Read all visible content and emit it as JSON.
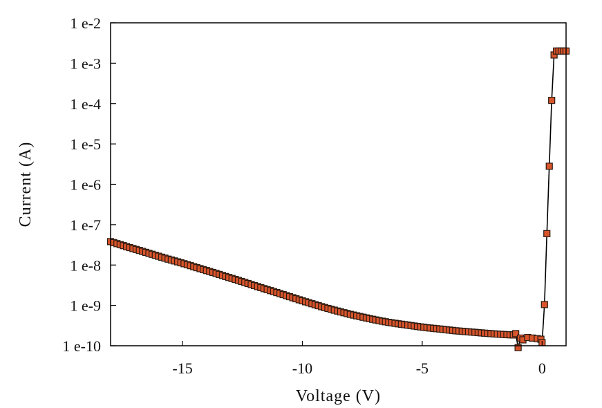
{
  "chart_data": {
    "type": "scatter",
    "title": "",
    "xlabel": "Voltage (V)",
    "ylabel": "Current (A)",
    "xlim": [
      -18,
      1
    ],
    "ylim": [
      1e-10,
      0.01
    ],
    "y_scale": "log",
    "x_ticks": [
      {
        "value": -15,
        "label": "-15"
      },
      {
        "value": -10,
        "label": "-10"
      },
      {
        "value": -5,
        "label": "-5"
      },
      {
        "value": 0,
        "label": "0"
      }
    ],
    "y_ticks": [
      {
        "value": 1e-10,
        "label": "1 e-10"
      },
      {
        "value": 1e-09,
        "label": "1 e-9"
      },
      {
        "value": 1e-08,
        "label": "1 e-8"
      },
      {
        "value": 1e-07,
        "label": "1 e-7"
      },
      {
        "value": 1e-06,
        "label": "1 e-6"
      },
      {
        "value": 1e-05,
        "label": "1 e-5"
      },
      {
        "value": 0.0001,
        "label": "1 e-4"
      },
      {
        "value": 0.001,
        "label": "1 e-3"
      },
      {
        "value": 0.01,
        "label": "1 e-2"
      }
    ],
    "grid": false,
    "legend": "none",
    "marker_fill": "#d9552c",
    "marker_edge": "#2a1a10",
    "line_color": "#000000",
    "series": [
      {
        "points": [
          {
            "x": -18.0,
            "y": 3.8e-08
          },
          {
            "x": -17.6,
            "y": 3.2e-08
          },
          {
            "x": -17.2,
            "y": 2.7e-08
          },
          {
            "x": -16.8,
            "y": 2.3e-08
          },
          {
            "x": -16.4,
            "y": 1.95e-08
          },
          {
            "x": -16.0,
            "y": 1.65e-08
          },
          {
            "x": -15.6,
            "y": 1.4e-08
          },
          {
            "x": -15.2,
            "y": 1.2e-08
          },
          {
            "x": -14.8,
            "y": 1.02e-08
          },
          {
            "x": -14.4,
            "y": 8.6e-09
          },
          {
            "x": -14.0,
            "y": 7.3e-09
          },
          {
            "x": -13.6,
            "y": 6.2e-09
          },
          {
            "x": -13.2,
            "y": 5.2e-09
          },
          {
            "x": -12.8,
            "y": 4.4e-09
          },
          {
            "x": -12.4,
            "y": 3.7e-09
          },
          {
            "x": -12.0,
            "y": 3.1e-09
          },
          {
            "x": -11.6,
            "y": 2.6e-09
          },
          {
            "x": -11.2,
            "y": 2.2e-09
          },
          {
            "x": -10.8,
            "y": 1.85e-09
          },
          {
            "x": -10.4,
            "y": 1.55e-09
          },
          {
            "x": -10.0,
            "y": 1.3e-09
          },
          {
            "x": -9.6,
            "y": 1.1e-09
          },
          {
            "x": -9.2,
            "y": 9.3e-10
          },
          {
            "x": -8.8,
            "y": 8e-10
          },
          {
            "x": -8.4,
            "y": 6.9e-10
          },
          {
            "x": -8.0,
            "y": 6e-10
          },
          {
            "x": -7.6,
            "y": 5.3e-10
          },
          {
            "x": -7.2,
            "y": 4.7e-10
          },
          {
            "x": -6.8,
            "y": 4.2e-10
          },
          {
            "x": -6.4,
            "y": 3.8e-10
          },
          {
            "x": -6.0,
            "y": 3.5e-10
          },
          {
            "x": -5.6,
            "y": 3.25e-10
          },
          {
            "x": -5.2,
            "y": 3e-10
          },
          {
            "x": -4.8,
            "y": 2.8e-10
          },
          {
            "x": -4.4,
            "y": 2.65e-10
          },
          {
            "x": -4.0,
            "y": 2.5e-10
          },
          {
            "x": -3.6,
            "y": 2.35e-10
          },
          {
            "x": -3.2,
            "y": 2.25e-10
          },
          {
            "x": -2.8,
            "y": 2.15e-10
          },
          {
            "x": -2.4,
            "y": 2.05e-10
          },
          {
            "x": -2.0,
            "y": 1.97e-10
          },
          {
            "x": -1.6,
            "y": 1.9e-10
          },
          {
            "x": -1.2,
            "y": 1.85e-10
          },
          {
            "x": -1.1,
            "y": 2e-10
          },
          {
            "x": -1.0,
            "y": 9e-11
          },
          {
            "x": -0.9,
            "y": 1.55e-10
          },
          {
            "x": -0.8,
            "y": 1.4e-10
          },
          {
            "x": -0.6,
            "y": 1.6e-10
          },
          {
            "x": -0.4,
            "y": 1.55e-10
          },
          {
            "x": -0.2,
            "y": 1.5e-10
          },
          {
            "x": -0.05,
            "y": 1.45e-10
          },
          {
            "x": 0.0,
            "y": 1.2e-10
          },
          {
            "x": 0.1,
            "y": 1.05e-09
          },
          {
            "x": 0.2,
            "y": 6e-08
          },
          {
            "x": 0.3,
            "y": 2.8e-06
          },
          {
            "x": 0.4,
            "y": 0.00012
          },
          {
            "x": 0.5,
            "y": 0.0016
          },
          {
            "x": 0.6,
            "y": 0.002
          },
          {
            "x": 0.7,
            "y": 0.002
          },
          {
            "x": 0.8,
            "y": 0.002
          },
          {
            "x": 0.9,
            "y": 0.002
          },
          {
            "x": 1.0,
            "y": 0.002
          }
        ]
      }
    ]
  }
}
